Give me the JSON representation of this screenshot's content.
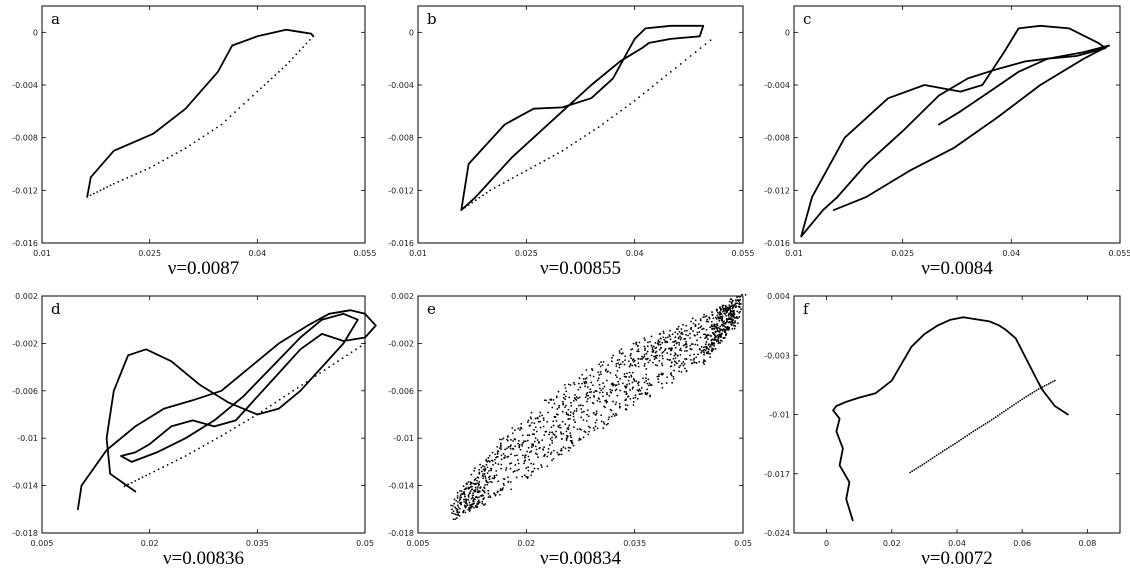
{
  "chart_data": [
    {
      "id": "a",
      "type": "line",
      "label": "a",
      "caption": "ν=0.0087",
      "xlim": [
        0.01,
        0.055
      ],
      "ylim": [
        -0.016,
        0.002
      ],
      "xticks": [
        0.01,
        0.025,
        0.04,
        0.055
      ],
      "xtick_labels": [
        "0.01",
        "0.025",
        "0.04",
        "0.055"
      ],
      "yticks": [
        0,
        -0.004,
        -0.008,
        -0.012,
        -0.016
      ],
      "ytick_labels": [
        "0",
        "-0.004",
        "-0.008",
        "-0.012",
        "-0.016"
      ],
      "series": [
        {
          "style": "solid",
          "x": [
            0.0163,
            0.0168,
            0.02,
            0.0255,
            0.03,
            0.0345,
            0.0365,
            0.0375,
            0.04,
            0.044,
            0.0475,
            0.0478
          ],
          "y": [
            -0.0125,
            -0.011,
            -0.009,
            -0.0077,
            -0.0058,
            -0.003,
            -0.001,
            -0.0008,
            -0.0003,
            0.0002,
            -0.0001,
            -0.0003
          ]
        },
        {
          "style": "dotted",
          "x": [
            0.0478,
            0.044,
            0.04,
            0.035,
            0.03,
            0.025,
            0.02,
            0.0163
          ],
          "y": [
            -0.0003,
            -0.0025,
            -0.0045,
            -0.007,
            -0.0088,
            -0.0103,
            -0.0115,
            -0.0125
          ]
        }
      ]
    },
    {
      "id": "b",
      "type": "line",
      "label": "b",
      "caption": "ν=0.00855",
      "xlim": [
        0.01,
        0.055
      ],
      "ylim": [
        -0.016,
        0.002
      ],
      "xticks": [
        0.01,
        0.025,
        0.04,
        0.055
      ],
      "xtick_labels": [
        "0.01",
        "0.025",
        "0.04",
        "0.055"
      ],
      "yticks": [
        0,
        -0.004,
        -0.008,
        -0.012,
        -0.016
      ],
      "ytick_labels": [
        "0",
        "-0.004",
        "-0.008",
        "-0.012",
        "-0.016"
      ],
      "series": [
        {
          "style": "solid",
          "x": [
            0.016,
            0.017,
            0.022,
            0.026,
            0.03,
            0.034,
            0.037,
            0.039,
            0.04,
            0.0415,
            0.045,
            0.0495,
            0.049,
            0.045,
            0.042,
            0.041,
            0.038,
            0.034,
            0.03,
            0.023,
            0.018,
            0.016
          ],
          "y": [
            -0.0135,
            -0.01,
            -0.007,
            -0.0058,
            -0.0057,
            -0.005,
            -0.0035,
            -0.0015,
            -0.0005,
            0.0003,
            0.0005,
            0.0005,
            -0.0003,
            -0.0005,
            -0.0008,
            -0.0012,
            -0.0022,
            -0.004,
            -0.006,
            -0.0095,
            -0.0125,
            -0.0135
          ]
        },
        {
          "style": "dotted",
          "x": [
            0.0505,
            0.045,
            0.04,
            0.035,
            0.03,
            0.025,
            0.02,
            0.016
          ],
          "y": [
            -0.0006,
            -0.003,
            -0.0052,
            -0.0072,
            -0.009,
            -0.0105,
            -0.012,
            -0.0135
          ]
        }
      ]
    },
    {
      "id": "c",
      "type": "line",
      "label": "c",
      "caption": "ν=0.0084",
      "xlim": [
        0.01,
        0.055
      ],
      "ylim": [
        -0.016,
        0.002
      ],
      "xticks": [
        0.01,
        0.025,
        0.04,
        0.055
      ],
      "xtick_labels": [
        "0.01",
        "0.025",
        "0.04",
        "0.055"
      ],
      "yticks": [
        0,
        -0.004,
        -0.008,
        -0.012,
        -0.016
      ],
      "ytick_labels": [
        "0",
        "-0.004",
        "-0.008",
        "-0.012",
        "-0.016"
      ],
      "series": [
        {
          "style": "solid",
          "x": [
            0.011,
            0.0125,
            0.017,
            0.023,
            0.028,
            0.033,
            0.036,
            0.039,
            0.041,
            0.044,
            0.048,
            0.052,
            0.053,
            0.049,
            0.045,
            0.042,
            0.038,
            0.034,
            0.03,
            0.025,
            0.02,
            0.016,
            0.014,
            0.011
          ],
          "y": [
            -0.0155,
            -0.0125,
            -0.008,
            -0.005,
            -0.004,
            -0.0045,
            -0.004,
            -0.0015,
            0.0003,
            0.0005,
            0.0003,
            -0.0008,
            -0.0012,
            -0.0018,
            -0.002,
            -0.0022,
            -0.0028,
            -0.0035,
            -0.0048,
            -0.0075,
            -0.01,
            -0.0125,
            -0.0135,
            -0.0155
          ]
        },
        {
          "style": "solid",
          "x": [
            0.0155,
            0.02,
            0.026,
            0.032,
            0.038,
            0.044,
            0.05,
            0.0535,
            0.05,
            0.045,
            0.041,
            0.037,
            0.033,
            0.03
          ],
          "y": [
            -0.0135,
            -0.0125,
            -0.0105,
            -0.0088,
            -0.0065,
            -0.004,
            -0.002,
            -0.001,
            -0.0015,
            -0.002,
            -0.003,
            -0.0045,
            -0.006,
            -0.007
          ]
        }
      ]
    },
    {
      "id": "d",
      "type": "line",
      "label": "d",
      "caption": "ν=0.00836",
      "xlim": [
        0.005,
        0.05
      ],
      "ylim": [
        -0.018,
        0.002
      ],
      "xticks": [
        0.005,
        0.02,
        0.035,
        0.05
      ],
      "xtick_labels": [
        "0.005",
        "0.02",
        "0.035",
        "0.05"
      ],
      "yticks": [
        0.002,
        -0.002,
        -0.006,
        -0.01,
        -0.014,
        -0.018
      ],
      "ytick_labels": [
        "0.002",
        "-0.002",
        "-0.006",
        "-0.01",
        "-0.014",
        "-0.018"
      ],
      "series": [
        {
          "style": "solid",
          "x": [
            0.01,
            0.0105,
            0.014,
            0.018,
            0.022,
            0.026,
            0.03,
            0.034,
            0.038,
            0.042,
            0.045,
            0.048,
            0.05,
            0.0515,
            0.05,
            0.047,
            0.044,
            0.041,
            0.038,
            0.035,
            0.032,
            0.029,
            0.026,
            0.023,
            0.02,
            0.018,
            0.016,
            0.0175,
            0.021,
            0.025,
            0.029,
            0.033,
            0.037,
            0.041,
            0.044,
            0.047,
            0.049,
            0.047,
            0.044,
            0.041,
            0.038,
            0.035,
            0.031,
            0.027,
            0.023,
            0.0195,
            0.017,
            0.015,
            0.014,
            0.0145,
            0.018
          ],
          "y": [
            -0.016,
            -0.014,
            -0.011,
            -0.009,
            -0.0075,
            -0.0068,
            -0.006,
            -0.004,
            -0.002,
            -0.0005,
            0.0005,
            0.0008,
            0.0005,
            -0.0005,
            -0.0015,
            -0.0018,
            -0.0012,
            -0.0025,
            -0.0045,
            -0.0065,
            -0.0085,
            -0.009,
            -0.0085,
            -0.009,
            -0.0105,
            -0.0112,
            -0.0115,
            -0.012,
            -0.0112,
            -0.01,
            -0.0085,
            -0.0065,
            -0.004,
            -0.0015,
            0.0,
            0.0005,
            0.0,
            -0.002,
            -0.004,
            -0.006,
            -0.0075,
            -0.008,
            -0.007,
            -0.0055,
            -0.0035,
            -0.0025,
            -0.003,
            -0.006,
            -0.01,
            -0.013,
            -0.0145
          ]
        },
        {
          "style": "dotted",
          "x": [
            0.05,
            0.045,
            0.04,
            0.035,
            0.03,
            0.025,
            0.02,
            0.016
          ],
          "y": [
            -0.002,
            -0.004,
            -0.006,
            -0.008,
            -0.0098,
            -0.0115,
            -0.013,
            -0.0142
          ]
        }
      ]
    },
    {
      "id": "e",
      "type": "scatter",
      "label": "e",
      "caption": "ν=0.00834",
      "xlim": [
        0.005,
        0.05
      ],
      "ylim": [
        -0.018,
        0.002
      ],
      "xticks": [
        0.005,
        0.02,
        0.035,
        0.05
      ],
      "xtick_labels": [
        "0.005",
        "0.02",
        "0.035",
        "0.05"
      ],
      "yticks": [
        0.002,
        -0.002,
        -0.006,
        -0.01,
        -0.014,
        -0.018
      ],
      "ytick_labels": [
        "0.002",
        "-0.002",
        "-0.006",
        "-0.01",
        "-0.014",
        "-0.018"
      ],
      "region": {
        "spine_x": [
          0.01,
          0.015,
          0.025,
          0.035,
          0.045,
          0.0495
        ],
        "spine_y": [
          -0.016,
          -0.013,
          -0.0085,
          -0.0045,
          -0.0015,
          0.001
        ],
        "halfwidth": [
          0.001,
          0.0025,
          0.0035,
          0.003,
          0.0022,
          0.0012
        ]
      }
    },
    {
      "id": "f",
      "type": "line",
      "label": "f",
      "caption": "ν=0.0072",
      "xlim": [
        -0.01,
        0.09
      ],
      "ylim": [
        -0.024,
        0.004
      ],
      "xticks": [
        0,
        0.02,
        0.04,
        0.06,
        0.08
      ],
      "xtick_labels": [
        "0",
        "0.02",
        "0.04",
        "0.06",
        "0.08"
      ],
      "yticks": [
        0.004,
        -0.003,
        -0.01,
        -0.017,
        -0.024
      ],
      "ytick_labels": [
        "0.004",
        "-0.003",
        "-0.01",
        "-0.017",
        "-0.024"
      ],
      "series": [
        {
          "style": "solid",
          "x": [
            0.008,
            0.006,
            0.007,
            0.004,
            0.005,
            0.003,
            0.004,
            0.002,
            0.003,
            0.006,
            0.01,
            0.015,
            0.02,
            0.023,
            0.026,
            0.03,
            0.034,
            0.038,
            0.042,
            0.045,
            0.05,
            0.053,
            0.055,
            0.058,
            0.06,
            0.062,
            0.064,
            0.066,
            0.068,
            0.07,
            0.072,
            0.074
          ],
          "y": [
            -0.0225,
            -0.02,
            -0.018,
            -0.016,
            -0.014,
            -0.012,
            -0.0105,
            -0.0095,
            -0.009,
            -0.0085,
            -0.008,
            -0.0075,
            -0.006,
            -0.004,
            -0.002,
            -0.0005,
            0.0005,
            0.0012,
            0.0015,
            0.0013,
            0.001,
            0.0005,
            0.0,
            -0.001,
            -0.0025,
            -0.004,
            -0.0055,
            -0.007,
            -0.008,
            -0.009,
            -0.0095,
            -0.01
          ]
        },
        {
          "style": "dotted",
          "x": [
            0.07,
            0.065,
            0.06,
            0.055,
            0.05,
            0.045,
            0.04,
            0.035,
            0.03,
            0.025
          ],
          "y": [
            -0.006,
            -0.007,
            -0.0082,
            -0.0095,
            -0.0108,
            -0.012,
            -0.0133,
            -0.0145,
            -0.0158,
            -0.017
          ]
        }
      ]
    }
  ]
}
